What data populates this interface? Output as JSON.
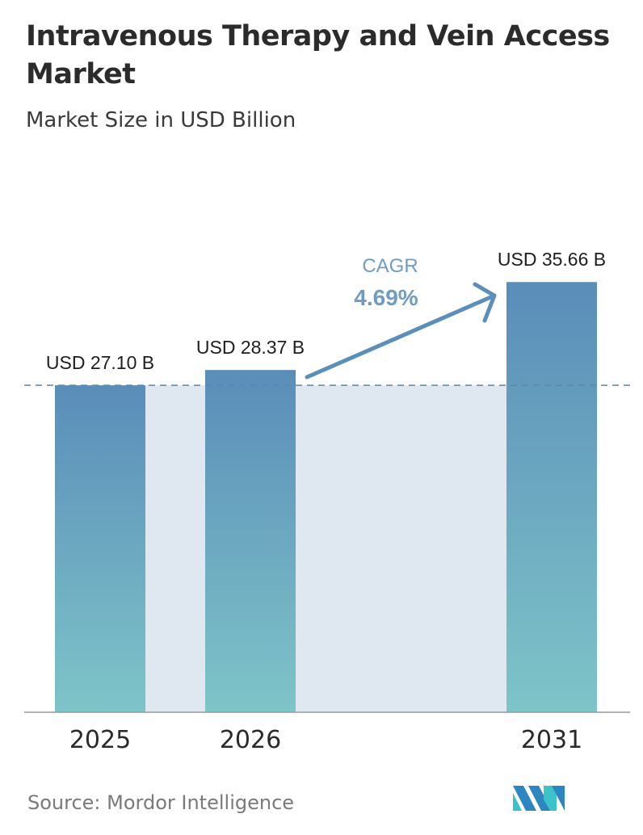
{
  "chart_data": {
    "type": "bar",
    "title": "Intravenous Therapy and Vein Access Market",
    "subtitle": "Market Size in USD Billion",
    "categories": [
      "2025",
      "2026",
      "2031"
    ],
    "values": [
      27.1,
      28.37,
      35.66
    ],
    "data_labels": [
      "USD 27.10 B",
      "USD 28.37 B",
      "USD 35.66 B"
    ],
    "ylim": [
      0,
      40
    ],
    "grid": false,
    "reference_line": 27.1,
    "annotation": {
      "label": "CAGR",
      "value": "4.69%"
    },
    "colors": {
      "bar_top": "#5a8db9",
      "bar_bottom": "#7ec4c8",
      "band": "#dfe8f1",
      "arrow": "#5b8fba",
      "axis": "#999999"
    }
  },
  "source": "Source:  Mordor Intelligence",
  "logo": {
    "name": "mordor-intelligence-logo",
    "colors": [
      "#2e86c1",
      "#3cc3c9"
    ]
  }
}
